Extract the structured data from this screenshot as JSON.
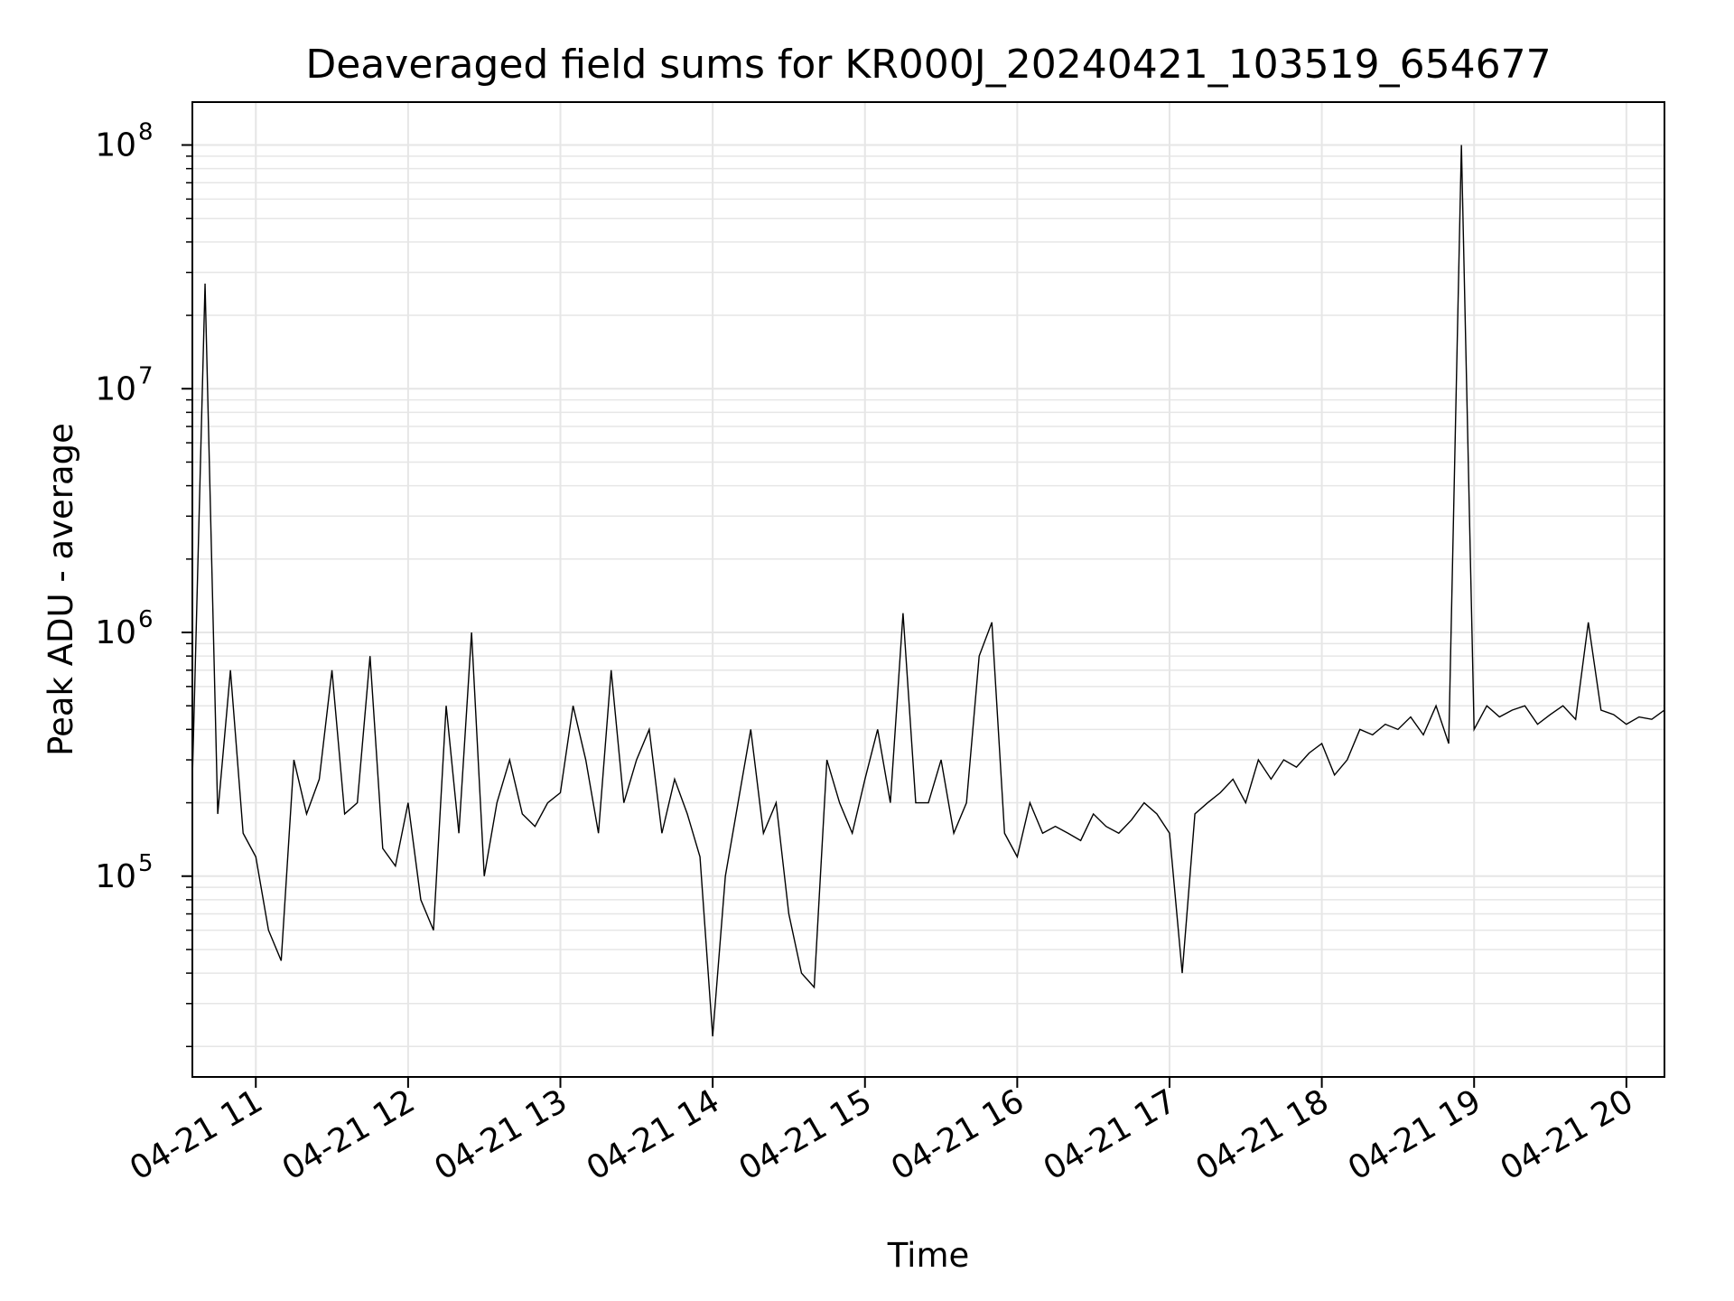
{
  "chart_data": {
    "type": "line",
    "title": "Deaveraged field sums for KR000J_20240421_103519_654677",
    "xlabel": "Time",
    "ylabel": "Peak ADU - average",
    "yscale": "log",
    "grid": true,
    "line_color": "#000000",
    "grid_color": "#e6e6e6",
    "xlim": [
      "2024-04-21 10:35",
      "2024-04-21 20:15"
    ],
    "ylim": [
      15000,
      150000000
    ],
    "x_ticks": [
      {
        "value": "2024-04-21 11:00",
        "label": "04-21 11"
      },
      {
        "value": "2024-04-21 12:00",
        "label": "04-21 12"
      },
      {
        "value": "2024-04-21 13:00",
        "label": "04-21 13"
      },
      {
        "value": "2024-04-21 14:00",
        "label": "04-21 14"
      },
      {
        "value": "2024-04-21 15:00",
        "label": "04-21 15"
      },
      {
        "value": "2024-04-21 16:00",
        "label": "04-21 16"
      },
      {
        "value": "2024-04-21 17:00",
        "label": "04-21 17"
      },
      {
        "value": "2024-04-21 18:00",
        "label": "04-21 18"
      },
      {
        "value": "2024-04-21 19:00",
        "label": "04-21 19"
      },
      {
        "value": "2024-04-21 20:00",
        "label": "04-21 20"
      }
    ],
    "y_ticks": [
      {
        "value": 100000,
        "base": "10",
        "exp": "5"
      },
      {
        "value": 1000000,
        "base": "10",
        "exp": "6"
      },
      {
        "value": 10000000,
        "base": "10",
        "exp": "7"
      },
      {
        "value": 100000000,
        "base": "10",
        "exp": "8"
      }
    ],
    "series": [
      {
        "x": [
          "2024-04-21 10:35",
          "2024-04-21 10:40",
          "2024-04-21 10:45",
          "2024-04-21 10:50",
          "2024-04-21 10:55",
          "2024-04-21 11:00",
          "2024-04-21 11:05",
          "2024-04-21 11:10",
          "2024-04-21 11:15",
          "2024-04-21 11:20",
          "2024-04-21 11:25",
          "2024-04-21 11:30",
          "2024-04-21 11:35",
          "2024-04-21 11:40",
          "2024-04-21 11:45",
          "2024-04-21 11:50",
          "2024-04-21 11:55",
          "2024-04-21 12:00",
          "2024-04-21 12:05",
          "2024-04-21 12:10",
          "2024-04-21 12:15",
          "2024-04-21 12:20",
          "2024-04-21 12:25",
          "2024-04-21 12:30",
          "2024-04-21 12:35",
          "2024-04-21 12:40",
          "2024-04-21 12:45",
          "2024-04-21 12:50",
          "2024-04-21 12:55",
          "2024-04-21 13:00",
          "2024-04-21 13:05",
          "2024-04-21 13:10",
          "2024-04-21 13:15",
          "2024-04-21 13:20",
          "2024-04-21 13:25",
          "2024-04-21 13:30",
          "2024-04-21 13:35",
          "2024-04-21 13:40",
          "2024-04-21 13:45",
          "2024-04-21 13:50",
          "2024-04-21 13:55",
          "2024-04-21 14:00",
          "2024-04-21 14:05",
          "2024-04-21 14:10",
          "2024-04-21 14:15",
          "2024-04-21 14:20",
          "2024-04-21 14:25",
          "2024-04-21 14:30",
          "2024-04-21 14:35",
          "2024-04-21 14:40",
          "2024-04-21 14:45",
          "2024-04-21 14:50",
          "2024-04-21 14:55",
          "2024-04-21 15:00",
          "2024-04-21 15:05",
          "2024-04-21 15:10",
          "2024-04-21 15:15",
          "2024-04-21 15:20",
          "2024-04-21 15:25",
          "2024-04-21 15:30",
          "2024-04-21 15:35",
          "2024-04-21 15:40",
          "2024-04-21 15:45",
          "2024-04-21 15:50",
          "2024-04-21 15:55",
          "2024-04-21 16:00",
          "2024-04-21 16:05",
          "2024-04-21 16:10",
          "2024-04-21 16:15",
          "2024-04-21 16:20",
          "2024-04-21 16:25",
          "2024-04-21 16:30",
          "2024-04-21 16:35",
          "2024-04-21 16:40",
          "2024-04-21 16:45",
          "2024-04-21 16:50",
          "2024-04-21 16:55",
          "2024-04-21 17:00",
          "2024-04-21 17:05",
          "2024-04-21 17:10",
          "2024-04-21 17:15",
          "2024-04-21 17:20",
          "2024-04-21 17:25",
          "2024-04-21 17:30",
          "2024-04-21 17:35",
          "2024-04-21 17:40",
          "2024-04-21 17:45",
          "2024-04-21 17:50",
          "2024-04-21 17:55",
          "2024-04-21 18:00",
          "2024-04-21 18:05",
          "2024-04-21 18:10",
          "2024-04-21 18:15",
          "2024-04-21 18:20",
          "2024-04-21 18:25",
          "2024-04-21 18:30",
          "2024-04-21 18:35",
          "2024-04-21 18:40",
          "2024-04-21 18:45",
          "2024-04-21 18:50",
          "2024-04-21 18:55",
          "2024-04-21 19:00",
          "2024-04-21 19:05",
          "2024-04-21 19:10",
          "2024-04-21 19:15",
          "2024-04-21 19:20",
          "2024-04-21 19:25",
          "2024-04-21 19:30",
          "2024-04-21 19:35",
          "2024-04-21 19:40",
          "2024-04-21 19:45",
          "2024-04-21 19:50",
          "2024-04-21 19:55",
          "2024-04-21 20:00",
          "2024-04-21 20:05",
          "2024-04-21 20:10",
          "2024-04-21 20:15"
        ],
        "y": [
          250000,
          27000000,
          180000,
          700000,
          150000,
          120000,
          60000,
          45000,
          300000,
          180000,
          250000,
          700000,
          180000,
          200000,
          800000,
          130000,
          110000,
          200000,
          80000,
          60000,
          500000,
          150000,
          1000000,
          100000,
          200000,
          300000,
          180000,
          160000,
          200000,
          220000,
          500000,
          300000,
          150000,
          700000,
          200000,
          300000,
          400000,
          150000,
          250000,
          180000,
          120000,
          22000,
          100000,
          200000,
          400000,
          150000,
          200000,
          70000,
          40000,
          35000,
          300000,
          200000,
          150000,
          250000,
          400000,
          200000,
          1200000,
          200000,
          200000,
          300000,
          150000,
          200000,
          800000,
          1100000,
          150000,
          120000,
          200000,
          150000,
          160000,
          150000,
          140000,
          180000,
          160000,
          150000,
          170000,
          200000,
          180000,
          150000,
          40000,
          180000,
          200000,
          220000,
          250000,
          200000,
          300000,
          250000,
          300000,
          280000,
          320000,
          350000,
          260000,
          300000,
          400000,
          380000,
          420000,
          400000,
          450000,
          380000,
          500000,
          350000,
          100000000,
          400000,
          500000,
          450000,
          480000,
          500000,
          420000,
          460000,
          500000,
          440000,
          1100000,
          480000,
          460000,
          420000,
          450000,
          440000,
          480000
        ]
      }
    ]
  }
}
